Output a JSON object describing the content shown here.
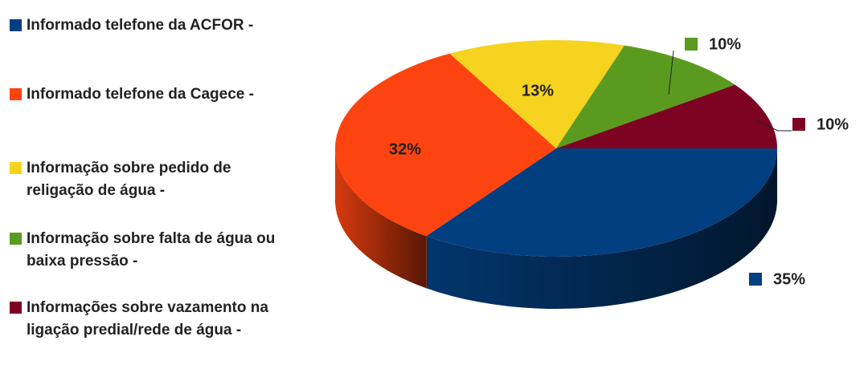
{
  "chart_data": {
    "type": "pie",
    "categories": [
      "Informado telefone da ACFOR -",
      "Informado telefone da Cagece -",
      "Informação sobre pedido de religação de água -",
      "Informação sobre falta de água ou baixa pressão -",
      "Informações sobre vazamento na ligação predial/rede de água -"
    ],
    "values": [
      35,
      32,
      13,
      10,
      10
    ],
    "value_labels": [
      "35%",
      "32%",
      "13%",
      "10%",
      "10%"
    ],
    "colors": [
      "#023f80",
      "#fd4410",
      "#f6d31e",
      "#5a9b1f",
      "#7e0323"
    ],
    "legend": "left"
  }
}
